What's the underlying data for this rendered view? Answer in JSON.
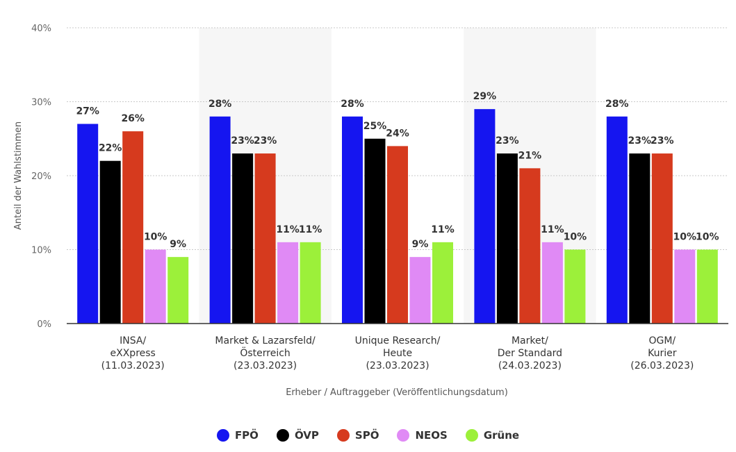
{
  "chart_data": {
    "type": "bar",
    "ylabel": "Anteil der Wahlstimmen",
    "xlabel": "Erheber / Auftraggeber (Veröffentlichungsdatum)",
    "ylim": [
      0,
      40
    ],
    "yticks": [
      "0%",
      "10%",
      "20%",
      "30%",
      "40%"
    ],
    "grid": true,
    "legend_position": "bottom-center",
    "categories": [
      [
        "INSA/",
        "eXXpress",
        "(11.03.2023)"
      ],
      [
        "Market & Lazarsfeld/",
        "Österreich",
        "(23.03.2023)"
      ],
      [
        "Unique Research/",
        "Heute",
        "(23.03.2023)"
      ],
      [
        "Market/",
        "Der Standard",
        "(24.03.2023)"
      ],
      [
        "OGM/",
        "Kurier",
        "(26.03.2023)"
      ]
    ],
    "series": [
      {
        "name": "FPÖ",
        "color": "#1515f0",
        "values": [
          27,
          28,
          28,
          29,
          28
        ]
      },
      {
        "name": "ÖVP",
        "color": "#000000",
        "values": [
          22,
          23,
          25,
          23,
          23
        ]
      },
      {
        "name": "SPÖ",
        "color": "#d63a1e",
        "values": [
          26,
          23,
          24,
          21,
          23
        ]
      },
      {
        "name": "NEOS",
        "color": "#e08af5",
        "values": [
          10,
          11,
          9,
          11,
          10
        ]
      },
      {
        "name": "Grüne",
        "color": "#9cf03a",
        "values": [
          9,
          11,
          11,
          10,
          10
        ]
      }
    ]
  }
}
